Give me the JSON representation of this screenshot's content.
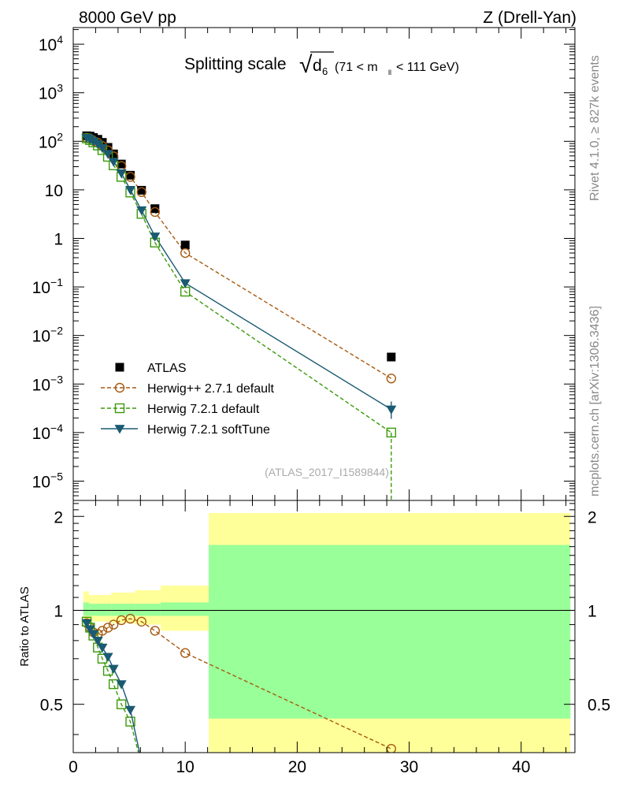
{
  "header": {
    "left": "8000 GeV pp",
    "right": "Z (Drell-Yan)"
  },
  "title": {
    "main": "Splitting scale",
    "sqrt_symbol": "√",
    "var": "d",
    "var_sub": "6",
    "cut_pre": "(71 < m",
    "cut_sub": "ll",
    "cut_post": "< 111 GeV)"
  },
  "side_labels": {
    "rivet": "Rivet 4.1.0, ≥ 827k events",
    "mcplots": "mcplots.cern.ch [arXiv:1306.3436]"
  },
  "analysis_id": "(ATLAS_2017_I1589844)",
  "ratio_ylabel": "Ratio to ATLAS",
  "main_axis": {
    "y_ticks": [
      {
        "v": 10000.0,
        "base": "10",
        "exp": "4"
      },
      {
        "v": 1000.0,
        "base": "10",
        "exp": "3"
      },
      {
        "v": 100.0,
        "base": "10",
        "exp": "2"
      },
      {
        "v": 10,
        "base": "10",
        "exp": ""
      },
      {
        "v": 1,
        "base": "1",
        "exp": ""
      },
      {
        "v": 0.1,
        "base": "10",
        "exp": "−1"
      },
      {
        "v": 0.01,
        "base": "10",
        "exp": "−2"
      },
      {
        "v": 0.001,
        "base": "10",
        "exp": "−3"
      },
      {
        "v": 0.0001,
        "base": "10",
        "exp": "−4"
      },
      {
        "v": 1e-05,
        "base": "10",
        "exp": "−5"
      }
    ]
  },
  "ratio_axis": {
    "y_ticks": [
      {
        "v": 0.5,
        "label": "0.5"
      },
      {
        "v": 1,
        "label": "1"
      },
      {
        "v": 2,
        "label": "2"
      }
    ]
  },
  "x_axis": {
    "ticks": [
      {
        "v": 0,
        "label": "0"
      },
      {
        "v": 10,
        "label": "10"
      },
      {
        "v": 20,
        "label": "20"
      },
      {
        "v": 30,
        "label": "30"
      },
      {
        "v": 40,
        "label": "40"
      }
    ]
  },
  "legend": [
    {
      "key": "atlas",
      "label": "ATLAS"
    },
    {
      "key": "hwpp",
      "label": "Herwig++ 2.7.1 default"
    },
    {
      "key": "hw72",
      "label": "Herwig 7.2.1 default"
    },
    {
      "key": "hwsoft",
      "label": "Herwig 7.2.1 softTune"
    }
  ],
  "colors": {
    "atlas": "#000000",
    "hwpp": "#a65a10",
    "hw72": "#3a9a0a",
    "hwsoft": "#1a5a72",
    "band_inner": "#99ff99",
    "band_outer": "#ffff99"
  },
  "chart_data": {
    "type": "scatter",
    "xlim": [
      0,
      44.8
    ],
    "main_ylim": [
      4e-06,
      22000
    ],
    "main_yscale": "log",
    "ratio_ylim": [
      0.35,
      2.25
    ],
    "ratio_yscale": "log",
    "series": [
      {
        "key": "atlas",
        "name": "ATLAS",
        "x": [
          1.2,
          1.5,
          1.8,
          2.2,
          2.6,
          3.1,
          3.6,
          4.3,
          5.1,
          6.1,
          7.3,
          10.0,
          28.4
        ],
        "y": [
          130,
          128,
          120,
          110,
          95,
          75,
          55,
          34,
          20,
          9.8,
          4.1,
          0.73,
          0.0036
        ]
      },
      {
        "key": "hwpp",
        "name": "Herwig++ 2.7.1 default",
        "x": [
          1.2,
          1.5,
          1.8,
          2.2,
          2.6,
          3.1,
          3.6,
          4.3,
          5.1,
          6.1,
          7.3,
          10.0,
          28.4
        ],
        "y": [
          118,
          113,
          102,
          93,
          80,
          65,
          49,
          31,
          18.5,
          9.0,
          3.5,
          0.5,
          0.0013
        ]
      },
      {
        "key": "hw72",
        "name": "Herwig 7.2.1 default",
        "x": [
          1.2,
          1.5,
          1.8,
          2.2,
          2.6,
          3.1,
          3.6,
          4.3,
          5.1,
          6.1,
          7.3,
          10.0,
          28.4
        ],
        "y": [
          115,
          106,
          95,
          82,
          66,
          48,
          32,
          18.5,
          8.8,
          3.2,
          0.82,
          0.08,
          0.0001
        ]
      },
      {
        "key": "hwsoft",
        "name": "Herwig 7.2.1 softTune",
        "x": [
          1.2,
          1.5,
          1.8,
          2.2,
          2.6,
          3.1,
          3.6,
          4.3,
          5.1,
          6.1,
          7.3,
          10.0,
          28.4
        ],
        "y": [
          118,
          111,
          100,
          88,
          73,
          55,
          38,
          22,
          10,
          3.8,
          1.1,
          0.12,
          0.0003
        ]
      }
    ],
    "ratio_series": [
      {
        "key": "hwpp",
        "x": [
          1.2,
          1.5,
          1.8,
          2.2,
          2.6,
          3.1,
          3.6,
          4.3,
          5.1,
          6.1,
          7.3,
          10.0,
          28.4
        ],
        "y": [
          0.91,
          0.88,
          0.85,
          0.84,
          0.86,
          0.88,
          0.9,
          0.93,
          0.94,
          0.92,
          0.86,
          0.73,
          0.36
        ]
      },
      {
        "key": "hw72",
        "x": [
          1.2,
          1.5,
          1.8,
          2.2,
          2.6,
          3.1,
          3.6,
          4.3,
          5.1
        ],
        "y": [
          0.92,
          0.88,
          0.83,
          0.76,
          0.7,
          0.64,
          0.58,
          0.5,
          0.44
        ]
      },
      {
        "key": "hwsoft",
        "x": [
          1.2,
          1.5,
          1.8,
          2.2,
          2.6,
          3.1,
          3.6,
          4.3,
          5.1
        ],
        "y": [
          0.91,
          0.87,
          0.84,
          0.8,
          0.76,
          0.71,
          0.65,
          0.58,
          0.48
        ]
      }
    ],
    "uncertainty_bands": [
      {
        "x0": 0.9,
        "x1": 1.4,
        "inner": [
          0.96,
          1.06
        ],
        "outer": [
          0.92,
          1.15
        ]
      },
      {
        "x0": 1.4,
        "x1": 2.0,
        "inner": [
          0.96,
          1.05
        ],
        "outer": [
          0.92,
          1.12
        ]
      },
      {
        "x0": 2.0,
        "x1": 3.4,
        "inner": [
          0.96,
          1.05
        ],
        "outer": [
          0.92,
          1.12
        ]
      },
      {
        "x0": 3.4,
        "x1": 5.5,
        "inner": [
          0.96,
          1.05
        ],
        "outer": [
          0.91,
          1.14
        ]
      },
      {
        "x0": 5.5,
        "x1": 7.8,
        "inner": [
          0.96,
          1.05
        ],
        "outer": [
          0.9,
          1.16
        ]
      },
      {
        "x0": 7.8,
        "x1": 12.1,
        "inner": [
          0.96,
          1.06
        ],
        "outer": [
          0.86,
          1.2
        ]
      },
      {
        "x0": 12.1,
        "x1": 44.4,
        "inner": [
          0.45,
          1.62
        ],
        "outer": [
          0.35,
          2.05
        ]
      }
    ]
  }
}
